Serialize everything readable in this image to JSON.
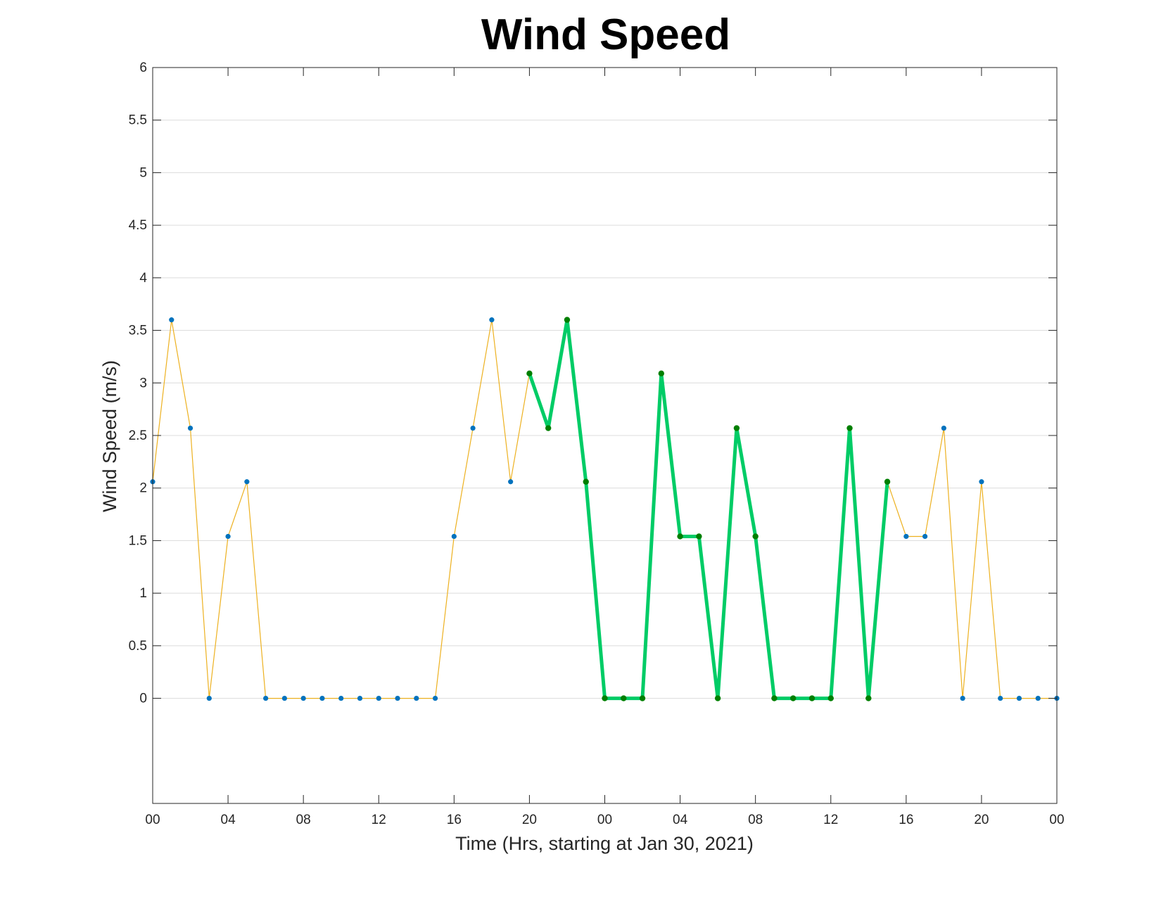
{
  "chart_data": {
    "type": "line",
    "title": "Wind Speed",
    "xlabel": "Time (Hrs, starting at Jan 30, 2021)",
    "ylabel": "Wind Speed (m/s)",
    "xlim": [
      0,
      48
    ],
    "ylim": [
      -1,
      6
    ],
    "grid": "horizontal",
    "x_ticks": [
      0,
      4,
      8,
      12,
      16,
      20,
      24,
      28,
      32,
      36,
      40,
      44,
      48
    ],
    "x_tick_labels": [
      "00",
      "04",
      "08",
      "12",
      "16",
      "20",
      "00",
      "04",
      "08",
      "12",
      "16",
      "20",
      "00"
    ],
    "y_ticks": [
      0,
      0.5,
      1,
      1.5,
      2,
      2.5,
      3,
      3.5,
      4,
      4.5,
      5,
      5.5,
      6
    ],
    "y_tick_labels": [
      "0",
      "0.5",
      "1",
      "1.5",
      "2",
      "2.5",
      "3",
      "3.5",
      "4",
      "4.5",
      "5",
      "5.5",
      "6"
    ],
    "series": [
      {
        "color": "#EDB120",
        "marker_color": "#0072BD",
        "x": [
          0,
          1,
          2,
          3,
          4,
          5,
          6,
          7,
          8,
          9,
          10,
          11,
          12,
          13,
          14,
          15,
          16,
          17,
          18,
          19,
          20,
          21,
          22,
          23,
          24,
          25,
          26,
          27,
          28,
          29,
          30,
          31,
          32,
          33,
          34,
          35,
          36,
          37,
          38,
          39,
          40,
          41,
          42,
          43,
          44,
          45,
          46,
          47,
          48
        ],
        "values": [
          2.06,
          3.6,
          2.57,
          0,
          1.54,
          2.06,
          0,
          0,
          0,
          0,
          0,
          0,
          0,
          0,
          0,
          0,
          1.54,
          2.57,
          3.6,
          2.06,
          3.09,
          2.57,
          3.6,
          2.06,
          0,
          0,
          0,
          3.09,
          1.54,
          1.54,
          0,
          2.57,
          1.54,
          0,
          0,
          0,
          0,
          2.57,
          0,
          2.06,
          1.54,
          1.54,
          2.57,
          0,
          2.06,
          0,
          0,
          0,
          0
        ]
      },
      {
        "color": "#00CC66",
        "marker_color": "#007F00",
        "x": [
          20,
          21,
          22,
          23,
          24,
          25,
          26,
          27,
          28,
          29,
          30,
          31,
          32,
          33,
          34,
          35,
          36,
          37,
          38,
          39
        ],
        "values": [
          3.09,
          2.57,
          3.6,
          2.06,
          0,
          0,
          0,
          3.09,
          1.54,
          1.54,
          0,
          2.57,
          1.54,
          0,
          0,
          0,
          0,
          2.57,
          0,
          2.06
        ]
      }
    ]
  }
}
